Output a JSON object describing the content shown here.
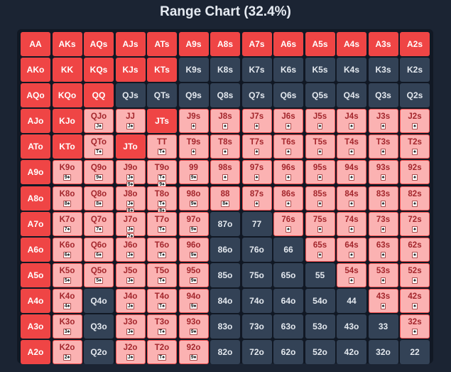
{
  "title": "Range Chart (32.4%)",
  "colors": {
    "full": "#ef4545",
    "mixed": "#fbb2b2",
    "none": "#334256",
    "background": "#1b2433"
  },
  "rows": [
    [
      {
        "h": "AA",
        "s": "full"
      },
      {
        "h": "AKs",
        "s": "full"
      },
      {
        "h": "AQs",
        "s": "full"
      },
      {
        "h": "AJs",
        "s": "full"
      },
      {
        "h": "ATs",
        "s": "full"
      },
      {
        "h": "A9s",
        "s": "full"
      },
      {
        "h": "A8s",
        "s": "full"
      },
      {
        "h": "A7s",
        "s": "full"
      },
      {
        "h": "A6s",
        "s": "full"
      },
      {
        "h": "A5s",
        "s": "full"
      },
      {
        "h": "A4s",
        "s": "full"
      },
      {
        "h": "A3s",
        "s": "full"
      },
      {
        "h": "A2s",
        "s": "full"
      }
    ],
    [
      {
        "h": "AKo",
        "s": "full"
      },
      {
        "h": "KK",
        "s": "full"
      },
      {
        "h": "KQs",
        "s": "full"
      },
      {
        "h": "KJs",
        "s": "full"
      },
      {
        "h": "KTs",
        "s": "full"
      },
      {
        "h": "K9s",
        "s": "none"
      },
      {
        "h": "K8s",
        "s": "none"
      },
      {
        "h": "K7s",
        "s": "none"
      },
      {
        "h": "K6s",
        "s": "none"
      },
      {
        "h": "K5s",
        "s": "none"
      },
      {
        "h": "K4s",
        "s": "none"
      },
      {
        "h": "K3s",
        "s": "none"
      },
      {
        "h": "K2s",
        "s": "none"
      }
    ],
    [
      {
        "h": "AQo",
        "s": "full"
      },
      {
        "h": "KQo",
        "s": "full"
      },
      {
        "h": "QQ",
        "s": "full"
      },
      {
        "h": "QJs",
        "s": "none"
      },
      {
        "h": "QTs",
        "s": "none"
      },
      {
        "h": "Q9s",
        "s": "none"
      },
      {
        "h": "Q8s",
        "s": "none"
      },
      {
        "h": "Q7s",
        "s": "none"
      },
      {
        "h": "Q6s",
        "s": "none"
      },
      {
        "h": "Q5s",
        "s": "none"
      },
      {
        "h": "Q4s",
        "s": "none"
      },
      {
        "h": "Q3s",
        "s": "none"
      },
      {
        "h": "Q2s",
        "s": "none"
      }
    ],
    [
      {
        "h": "AJo",
        "s": "full"
      },
      {
        "h": "KJo",
        "s": "full"
      },
      {
        "h": "QJo",
        "s": "mixed",
        "sub": [
          "J♠"
        ]
      },
      {
        "h": "JJ",
        "s": "mixed",
        "sub": [
          "J♠"
        ]
      },
      {
        "h": "JTs",
        "s": "full"
      },
      {
        "h": "J9s",
        "s": "mixed",
        "sub": [
          "♠"
        ]
      },
      {
        "h": "J8s",
        "s": "mixed",
        "sub": [
          "♠"
        ]
      },
      {
        "h": "J7s",
        "s": "mixed",
        "sub": [
          "♠"
        ]
      },
      {
        "h": "J6s",
        "s": "mixed",
        "sub": [
          "♠"
        ]
      },
      {
        "h": "J5s",
        "s": "mixed",
        "sub": [
          "♠"
        ]
      },
      {
        "h": "J4s",
        "s": "mixed",
        "sub": [
          "♠"
        ]
      },
      {
        "h": "J3s",
        "s": "mixed",
        "sub": [
          "♠"
        ]
      },
      {
        "h": "J2s",
        "s": "mixed",
        "sub": [
          "♠"
        ]
      }
    ],
    [
      {
        "h": "ATo",
        "s": "full"
      },
      {
        "h": "KTo",
        "s": "full"
      },
      {
        "h": "QTo",
        "s": "mixed",
        "sub": [
          "T♠"
        ]
      },
      {
        "h": "JTo",
        "s": "full"
      },
      {
        "h": "TT",
        "s": "mixed",
        "sub": [
          "T♠"
        ]
      },
      {
        "h": "T9s",
        "s": "mixed",
        "sub": [
          "♠"
        ]
      },
      {
        "h": "T8s",
        "s": "mixed",
        "sub": [
          "♠"
        ]
      },
      {
        "h": "T7s",
        "s": "mixed",
        "sub": [
          "♠"
        ]
      },
      {
        "h": "T6s",
        "s": "mixed",
        "sub": [
          "♠"
        ]
      },
      {
        "h": "T5s",
        "s": "mixed",
        "sub": [
          "♠"
        ]
      },
      {
        "h": "T4s",
        "s": "mixed",
        "sub": [
          "♠"
        ]
      },
      {
        "h": "T3s",
        "s": "mixed",
        "sub": [
          "♠"
        ]
      },
      {
        "h": "T2s",
        "s": "mixed",
        "sub": [
          "♠"
        ]
      }
    ],
    [
      {
        "h": "A9o",
        "s": "full"
      },
      {
        "h": "K9o",
        "s": "mixed",
        "sub": [
          "9♠"
        ]
      },
      {
        "h": "Q9o",
        "s": "mixed",
        "sub": [
          "9♠"
        ]
      },
      {
        "h": "J9o",
        "s": "mixed",
        "sub": [
          "J♠",
          "9♠"
        ]
      },
      {
        "h": "T9o",
        "s": "mixed",
        "sub": [
          "T♠",
          "9♠"
        ]
      },
      {
        "h": "99",
        "s": "mixed",
        "sub": [
          "9♠"
        ]
      },
      {
        "h": "98s",
        "s": "mixed",
        "sub": [
          "♠"
        ]
      },
      {
        "h": "97s",
        "s": "mixed",
        "sub": [
          "♠"
        ]
      },
      {
        "h": "96s",
        "s": "mixed",
        "sub": [
          "♠"
        ]
      },
      {
        "h": "95s",
        "s": "mixed",
        "sub": [
          "♠"
        ]
      },
      {
        "h": "94s",
        "s": "mixed",
        "sub": [
          "♠"
        ]
      },
      {
        "h": "93s",
        "s": "mixed",
        "sub": [
          "♠"
        ]
      },
      {
        "h": "92s",
        "s": "mixed",
        "sub": [
          "♠"
        ]
      }
    ],
    [
      {
        "h": "A8o",
        "s": "full"
      },
      {
        "h": "K8o",
        "s": "mixed",
        "sub": [
          "8♠"
        ]
      },
      {
        "h": "Q8o",
        "s": "mixed",
        "sub": [
          "8♠"
        ]
      },
      {
        "h": "J8o",
        "s": "mixed",
        "sub": [
          "J♠",
          "8♠"
        ]
      },
      {
        "h": "T8o",
        "s": "mixed",
        "sub": [
          "T♠",
          "8♠"
        ]
      },
      {
        "h": "98o",
        "s": "mixed",
        "sub": [
          "9♠"
        ]
      },
      {
        "h": "88",
        "s": "mixed",
        "sub": [
          "8♠"
        ]
      },
      {
        "h": "87s",
        "s": "mixed",
        "sub": [
          "♠"
        ]
      },
      {
        "h": "86s",
        "s": "mixed",
        "sub": [
          "♠"
        ]
      },
      {
        "h": "85s",
        "s": "mixed",
        "sub": [
          "♠"
        ]
      },
      {
        "h": "84s",
        "s": "mixed",
        "sub": [
          "♠"
        ]
      },
      {
        "h": "83s",
        "s": "mixed",
        "sub": [
          "♠"
        ]
      },
      {
        "h": "82s",
        "s": "mixed",
        "sub": [
          "♠"
        ]
      }
    ],
    [
      {
        "h": "A7o",
        "s": "full"
      },
      {
        "h": "K7o",
        "s": "mixed",
        "sub": [
          "7♠"
        ]
      },
      {
        "h": "Q7o",
        "s": "mixed",
        "sub": [
          "7♠"
        ]
      },
      {
        "h": "J7o",
        "s": "mixed",
        "sub": [
          "J♠",
          "7♠"
        ]
      },
      {
        "h": "T7o",
        "s": "mixed",
        "sub": [
          "T♠"
        ]
      },
      {
        "h": "97o",
        "s": "mixed",
        "sub": [
          "9♠"
        ]
      },
      {
        "h": "87o",
        "s": "none"
      },
      {
        "h": "77",
        "s": "none"
      },
      {
        "h": "76s",
        "s": "mixed",
        "sub": [
          "♠"
        ]
      },
      {
        "h": "75s",
        "s": "mixed",
        "sub": [
          "♠"
        ]
      },
      {
        "h": "74s",
        "s": "mixed",
        "sub": [
          "♠"
        ]
      },
      {
        "h": "73s",
        "s": "mixed",
        "sub": [
          "♠"
        ]
      },
      {
        "h": "72s",
        "s": "mixed",
        "sub": [
          "♠"
        ]
      }
    ],
    [
      {
        "h": "A6o",
        "s": "full"
      },
      {
        "h": "K6o",
        "s": "mixed",
        "sub": [
          "6♠"
        ]
      },
      {
        "h": "Q6o",
        "s": "mixed",
        "sub": [
          "6♠"
        ]
      },
      {
        "h": "J6o",
        "s": "mixed",
        "sub": [
          "J♠"
        ]
      },
      {
        "h": "T6o",
        "s": "mixed",
        "sub": [
          "T♠"
        ]
      },
      {
        "h": "96o",
        "s": "mixed",
        "sub": [
          "9♠"
        ]
      },
      {
        "h": "86o",
        "s": "none"
      },
      {
        "h": "76o",
        "s": "none"
      },
      {
        "h": "66",
        "s": "none"
      },
      {
        "h": "65s",
        "s": "mixed",
        "sub": [
          "♠"
        ]
      },
      {
        "h": "64s",
        "s": "mixed",
        "sub": [
          "♠"
        ]
      },
      {
        "h": "63s",
        "s": "mixed",
        "sub": [
          "♠"
        ]
      },
      {
        "h": "62s",
        "s": "mixed",
        "sub": [
          "♠"
        ]
      }
    ],
    [
      {
        "h": "A5o",
        "s": "full"
      },
      {
        "h": "K5o",
        "s": "mixed",
        "sub": [
          "5♠"
        ]
      },
      {
        "h": "Q5o",
        "s": "mixed",
        "sub": [
          "5♠"
        ]
      },
      {
        "h": "J5o",
        "s": "mixed",
        "sub": [
          "J♠"
        ]
      },
      {
        "h": "T5o",
        "s": "mixed",
        "sub": [
          "T♠"
        ]
      },
      {
        "h": "95o",
        "s": "mixed",
        "sub": [
          "9♠"
        ]
      },
      {
        "h": "85o",
        "s": "none"
      },
      {
        "h": "75o",
        "s": "none"
      },
      {
        "h": "65o",
        "s": "none"
      },
      {
        "h": "55",
        "s": "none"
      },
      {
        "h": "54s",
        "s": "mixed",
        "sub": [
          "♠"
        ]
      },
      {
        "h": "53s",
        "s": "mixed",
        "sub": [
          "♠"
        ]
      },
      {
        "h": "52s",
        "s": "mixed",
        "sub": [
          "♠"
        ]
      }
    ],
    [
      {
        "h": "A4o",
        "s": "full"
      },
      {
        "h": "K4o",
        "s": "mixed",
        "sub": [
          "4♠"
        ]
      },
      {
        "h": "Q4o",
        "s": "none"
      },
      {
        "h": "J4o",
        "s": "mixed",
        "sub": [
          "J♠"
        ]
      },
      {
        "h": "T4o",
        "s": "mixed",
        "sub": [
          "T♠"
        ]
      },
      {
        "h": "94o",
        "s": "mixed",
        "sub": [
          "9♠"
        ]
      },
      {
        "h": "84o",
        "s": "none"
      },
      {
        "h": "74o",
        "s": "none"
      },
      {
        "h": "64o",
        "s": "none"
      },
      {
        "h": "54o",
        "s": "none"
      },
      {
        "h": "44",
        "s": "none"
      },
      {
        "h": "43s",
        "s": "mixed",
        "sub": [
          "♠"
        ]
      },
      {
        "h": "42s",
        "s": "mixed",
        "sub": [
          "♠"
        ]
      }
    ],
    [
      {
        "h": "A3o",
        "s": "full"
      },
      {
        "h": "K3o",
        "s": "mixed",
        "sub": [
          "3♠"
        ]
      },
      {
        "h": "Q3o",
        "s": "none"
      },
      {
        "h": "J3o",
        "s": "mixed",
        "sub": [
          "J♠"
        ]
      },
      {
        "h": "T3o",
        "s": "mixed",
        "sub": [
          "T♠"
        ]
      },
      {
        "h": "93o",
        "s": "mixed",
        "sub": [
          "9♠"
        ]
      },
      {
        "h": "83o",
        "s": "none"
      },
      {
        "h": "73o",
        "s": "none"
      },
      {
        "h": "63o",
        "s": "none"
      },
      {
        "h": "53o",
        "s": "none"
      },
      {
        "h": "43o",
        "s": "none"
      },
      {
        "h": "33",
        "s": "none"
      },
      {
        "h": "32s",
        "s": "mixed",
        "sub": [
          "♠"
        ]
      }
    ],
    [
      {
        "h": "A2o",
        "s": "full"
      },
      {
        "h": "K2o",
        "s": "mixed",
        "sub": [
          "2♠"
        ]
      },
      {
        "h": "Q2o",
        "s": "none"
      },
      {
        "h": "J2o",
        "s": "mixed",
        "sub": [
          "J♠"
        ]
      },
      {
        "h": "T2o",
        "s": "mixed",
        "sub": [
          "T♠"
        ]
      },
      {
        "h": "92o",
        "s": "mixed",
        "sub": [
          "9♠"
        ]
      },
      {
        "h": "82o",
        "s": "none"
      },
      {
        "h": "72o",
        "s": "none"
      },
      {
        "h": "62o",
        "s": "none"
      },
      {
        "h": "52o",
        "s": "none"
      },
      {
        "h": "42o",
        "s": "none"
      },
      {
        "h": "32o",
        "s": "none"
      },
      {
        "h": "22",
        "s": "none"
      }
    ]
  ]
}
